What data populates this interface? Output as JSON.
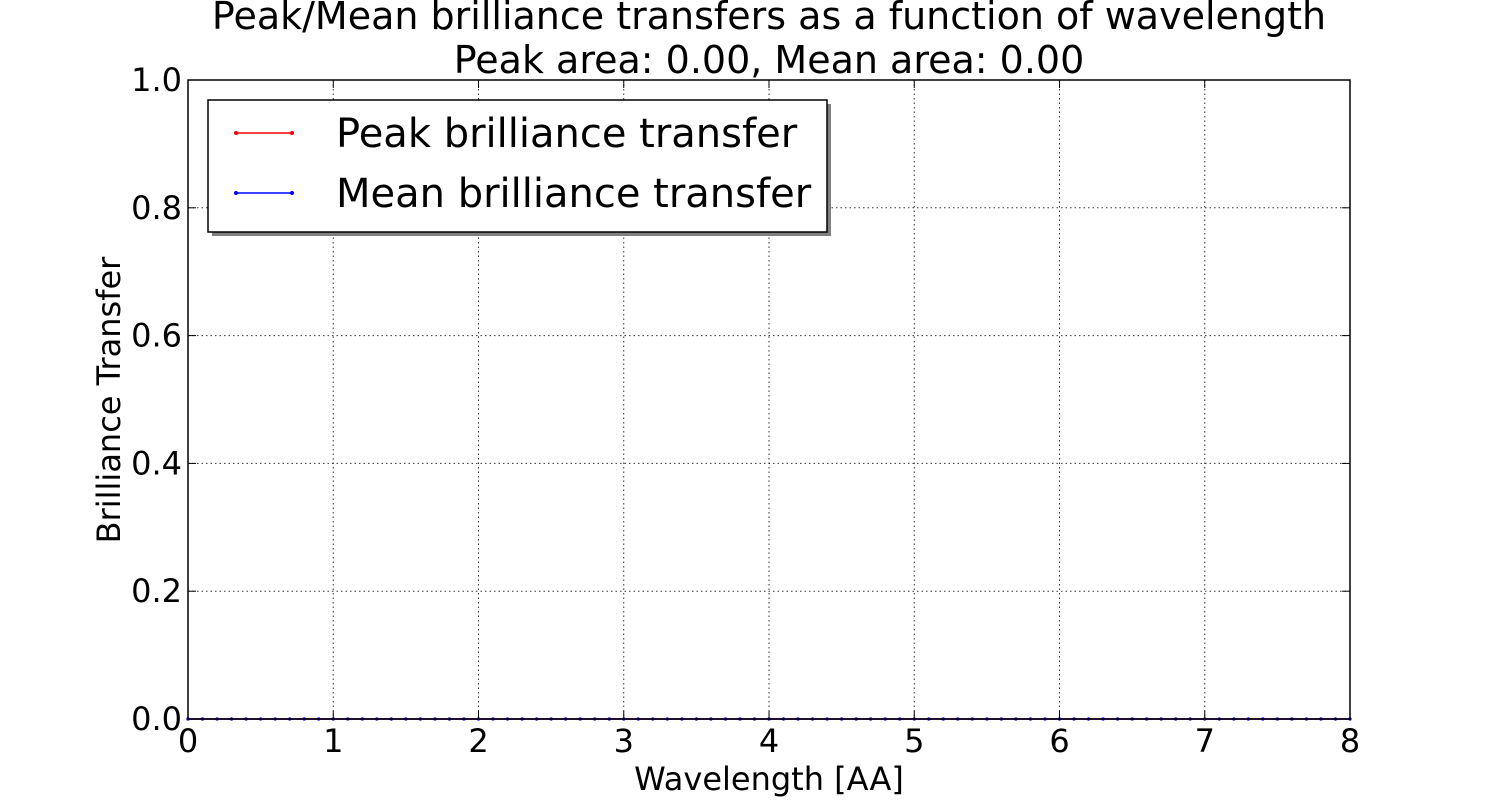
{
  "chart_data": {
    "type": "line",
    "title": "Peak/Mean brilliance transfers as a function of wavelength",
    "subtitle": "Peak area: 0.00, Mean area: 0.00",
    "xlabel": "Wavelength [AA]",
    "ylabel": "Brilliance Transfer",
    "xlim": [
      0,
      8
    ],
    "ylim": [
      0,
      1.0
    ],
    "xticks": [
      "0",
      "1",
      "2",
      "3",
      "4",
      "5",
      "6",
      "7",
      "8"
    ],
    "yticks": [
      "0.0",
      "0.2",
      "0.4",
      "0.6",
      "0.8",
      "1.0"
    ],
    "grid": true,
    "legend_position": "top-left",
    "x": [
      0,
      0.1,
      0.2,
      0.3,
      0.4,
      0.5,
      0.6,
      0.7,
      0.8,
      0.9,
      1.0,
      1.1,
      1.2,
      1.3,
      1.4,
      1.5,
      1.6,
      1.7,
      1.8,
      1.9,
      2.0,
      2.1,
      2.2,
      2.3,
      2.4,
      2.5,
      2.6,
      2.7,
      2.8,
      2.9,
      3.0,
      3.1,
      3.2,
      3.3,
      3.4,
      3.5,
      3.6,
      3.7,
      3.8,
      3.9,
      4.0,
      4.1,
      4.2,
      4.3,
      4.4,
      4.5,
      4.6,
      4.7,
      4.8,
      4.9,
      5.0,
      5.1,
      5.2,
      5.3,
      5.4,
      5.5,
      5.6,
      5.7,
      5.8,
      5.9,
      6.0,
      6.1,
      6.2,
      6.3,
      6.4,
      6.5,
      6.6,
      6.7,
      6.8,
      6.9,
      7.0,
      7.1,
      7.2,
      7.3,
      7.4,
      7.5,
      7.6,
      7.7,
      7.8,
      7.9,
      8.0
    ],
    "series": [
      {
        "name": "Peak brilliance transfer",
        "color": "#ff0000",
        "values": [
          0,
          0,
          0,
          0,
          0,
          0,
          0,
          0,
          0,
          0,
          0,
          0,
          0,
          0,
          0,
          0,
          0,
          0,
          0,
          0,
          0,
          0,
          0,
          0,
          0,
          0,
          0,
          0,
          0,
          0,
          0,
          0,
          0,
          0,
          0,
          0,
          0,
          0,
          0,
          0,
          0,
          0,
          0,
          0,
          0,
          0,
          0,
          0,
          0,
          0,
          0,
          0,
          0,
          0,
          0,
          0,
          0,
          0,
          0,
          0,
          0,
          0,
          0,
          0,
          0,
          0,
          0,
          0,
          0,
          0,
          0,
          0,
          0,
          0,
          0,
          0,
          0,
          0,
          0,
          0,
          0
        ]
      },
      {
        "name": "Mean brilliance transfer",
        "color": "#0000ff",
        "values": [
          0,
          0,
          0,
          0,
          0,
          0,
          0,
          0,
          0,
          0,
          0,
          0,
          0,
          0,
          0,
          0,
          0,
          0,
          0,
          0,
          0,
          0,
          0,
          0,
          0,
          0,
          0,
          0,
          0,
          0,
          0,
          0,
          0,
          0,
          0,
          0,
          0,
          0,
          0,
          0,
          0,
          0,
          0,
          0,
          0,
          0,
          0,
          0,
          0,
          0,
          0,
          0,
          0,
          0,
          0,
          0,
          0,
          0,
          0,
          0,
          0,
          0,
          0,
          0,
          0,
          0,
          0,
          0,
          0,
          0,
          0,
          0,
          0,
          0,
          0,
          0,
          0,
          0,
          0,
          0,
          0
        ]
      }
    ]
  }
}
